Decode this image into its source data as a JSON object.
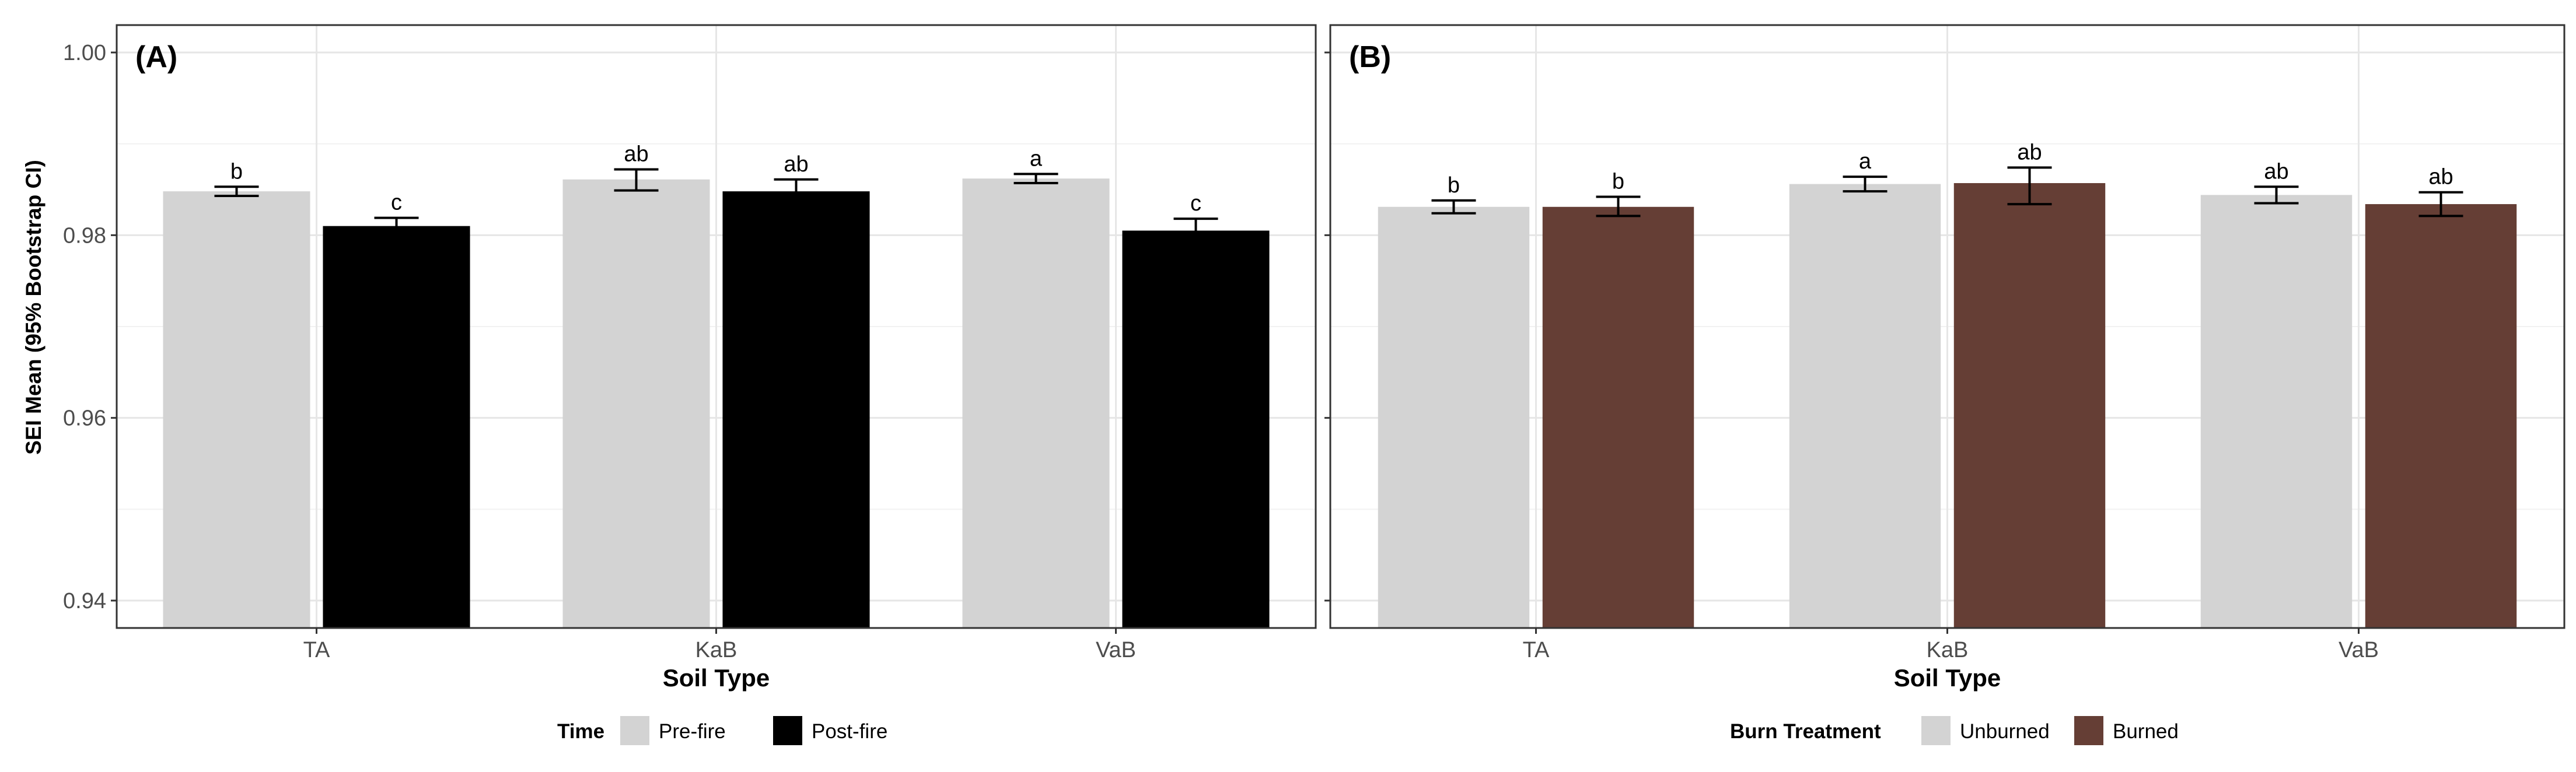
{
  "figure": {
    "ylabel": "SEI Mean (95% Bootstrap CI)",
    "y_ticks": [
      0.94,
      0.96,
      0.98,
      1.0
    ],
    "y_tick_labels": [
      "0.94",
      "0.96",
      "0.98",
      "1.00"
    ]
  },
  "chart_data": [
    {
      "type": "bar",
      "panel_label": "(A)",
      "xlabel": "Soil Type",
      "ylabel": "SEI Mean (95% Bootstrap CI)",
      "ylim": [
        0.937,
        1.003
      ],
      "grid": true,
      "categories": [
        "TA",
        "KaB",
        "VaB"
      ],
      "series": [
        {
          "name": "Pre-fire",
          "color": "#d3d3d3",
          "values": [
            0.9848,
            0.9861,
            0.9862
          ],
          "ci_low": [
            0.9843,
            0.9849,
            0.9857
          ],
          "ci_high": [
            0.9853,
            0.9872,
            0.9867
          ],
          "letters": [
            "b",
            "ab",
            "a"
          ]
        },
        {
          "name": "Post-fire",
          "color": "#000000",
          "values": [
            0.981,
            0.9848,
            0.9805
          ],
          "ci_low": [
            0.9801,
            0.9838,
            0.9793
          ],
          "ci_high": [
            0.9819,
            0.9861,
            0.9818
          ],
          "letters": [
            "c",
            "ab",
            "c"
          ]
        }
      ],
      "legend": {
        "title": "Time",
        "position": "bottom"
      }
    },
    {
      "type": "bar",
      "panel_label": "(B)",
      "xlabel": "Soil Type",
      "ylabel": "SEI Mean (95% Bootstrap CI)",
      "ylim": [
        0.937,
        1.003
      ],
      "grid": true,
      "categories": [
        "TA",
        "KaB",
        "VaB"
      ],
      "series": [
        {
          "name": "Unburned",
          "color": "#d3d3d3",
          "values": [
            0.9831,
            0.9856,
            0.9844
          ],
          "ci_low": [
            0.9824,
            0.9848,
            0.9835
          ],
          "ci_high": [
            0.9838,
            0.9864,
            0.9853
          ],
          "letters": [
            "b",
            "a",
            "ab"
          ]
        },
        {
          "name": "Burned",
          "color": "#653e35",
          "values": [
            0.9831,
            0.9857,
            0.9834
          ],
          "ci_low": [
            0.9821,
            0.9834,
            0.9821
          ],
          "ci_high": [
            0.9842,
            0.9874,
            0.9847
          ],
          "letters": [
            "b",
            "ab",
            "ab"
          ]
        }
      ],
      "legend": {
        "title": "Burn Treatment",
        "position": "bottom"
      }
    }
  ]
}
